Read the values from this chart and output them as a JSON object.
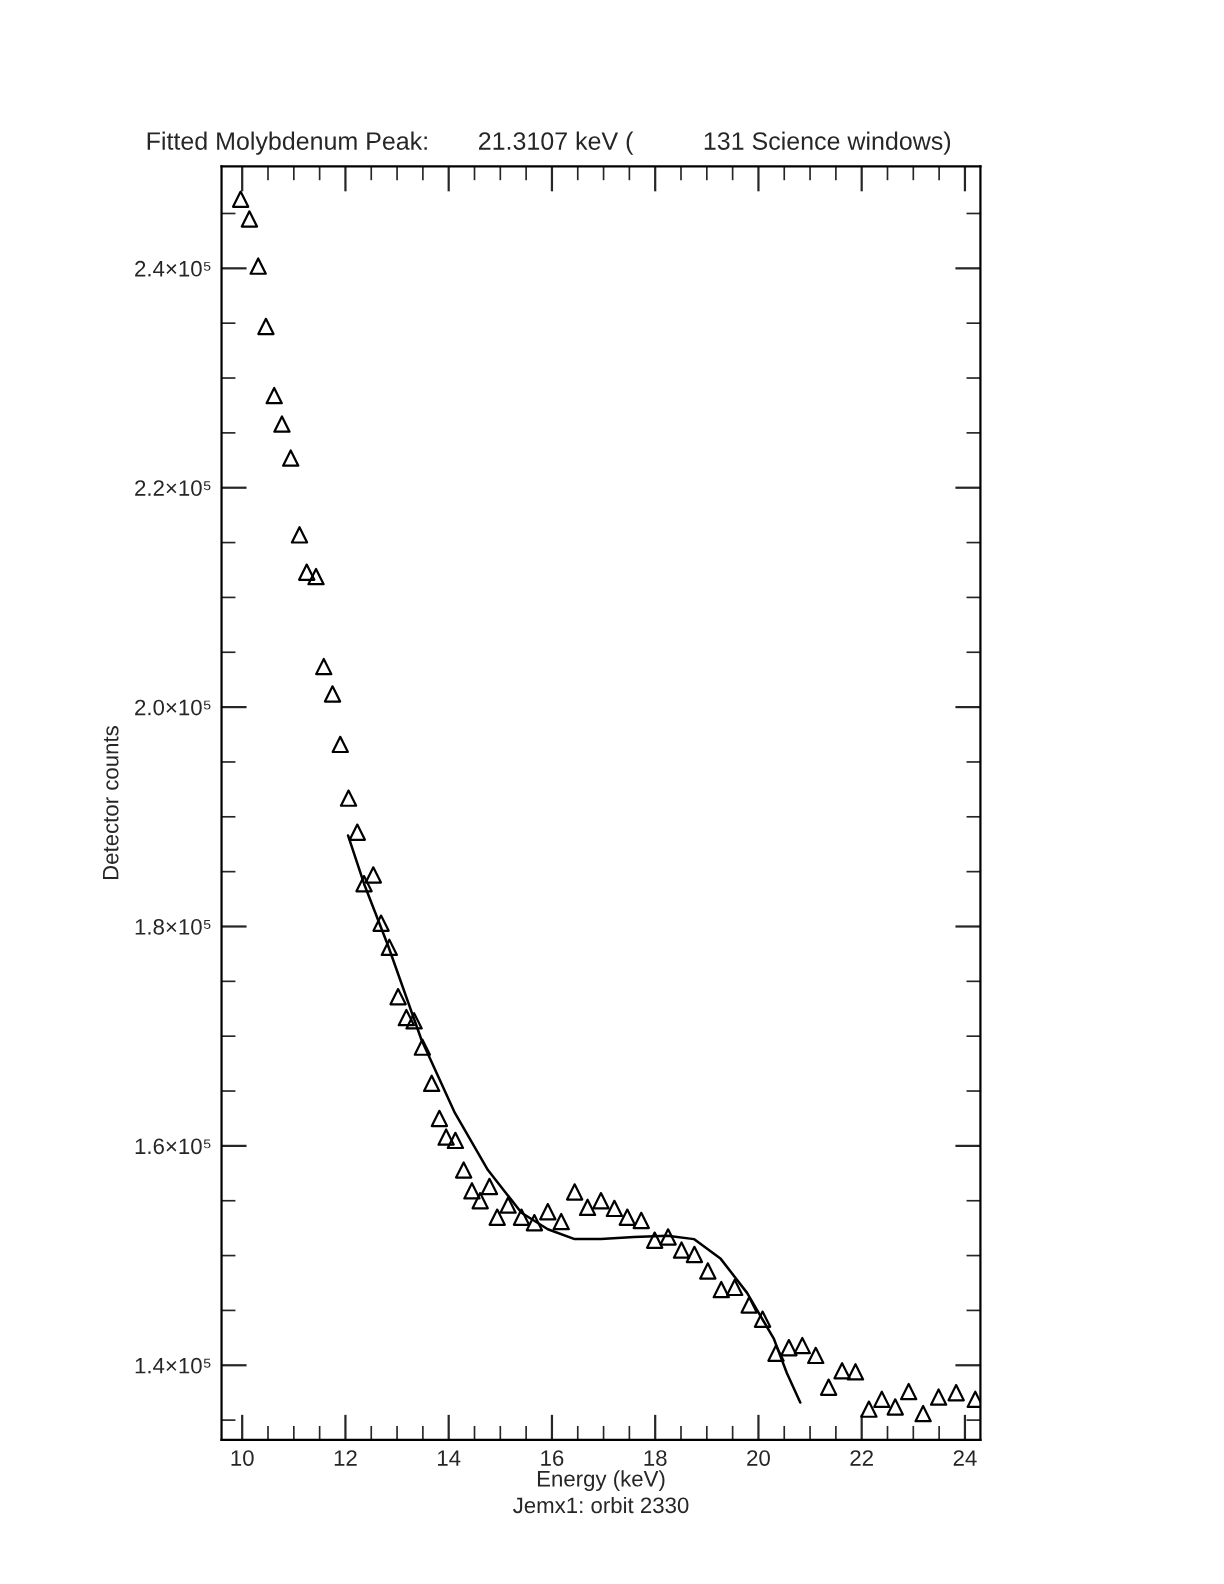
{
  "chart_data": {
    "type": "scatter",
    "title": "Fitted Molybdenum Peak:       21.3107 keV (          131 Science windows)",
    "xlabel": "Energy (keV)",
    "ylabel": "Detector counts",
    "annotations": [
      "Jemx1: orbit 2330"
    ],
    "xlim": [
      9.6,
      24.3
    ],
    "xticks": [
      10,
      12,
      14,
      16,
      18,
      20,
      22,
      24
    ],
    "ylim": [
      133200,
      249300
    ],
    "yticks": [
      {
        "value": 140000,
        "label": "1.4×10⁵"
      },
      {
        "value": 160000,
        "label": "1.6×10⁵"
      },
      {
        "value": 180000,
        "label": "1.8×10⁵"
      },
      {
        "value": 200000,
        "label": "2.0×10⁵"
      },
      {
        "value": 220000,
        "label": "2.2×10⁵"
      },
      {
        "value": 240000,
        "label": "2.4×10⁵"
      }
    ],
    "grid": false,
    "legend": false,
    "series": [
      {
        "marker": "triangle",
        "color": "#000000",
        "x": [
          9.97,
          10.14,
          10.31,
          10.46,
          10.62,
          10.77,
          10.94,
          11.11,
          11.25,
          11.43,
          11.58,
          11.75,
          11.9,
          12.06,
          12.23,
          12.36,
          12.54,
          12.69,
          12.85,
          13.02,
          13.18,
          13.33,
          13.49,
          13.67,
          13.82,
          13.95,
          14.13,
          14.29,
          14.45,
          14.61,
          14.79,
          14.94,
          15.15,
          15.41,
          15.66,
          15.92,
          16.18,
          16.44,
          16.69,
          16.95,
          17.21,
          17.46,
          17.73,
          17.99,
          18.25,
          18.51,
          18.76,
          19.02,
          19.28,
          19.54,
          19.82,
          20.08,
          20.34,
          20.59,
          20.85,
          21.11,
          21.36,
          21.62,
          21.88,
          22.14,
          22.39,
          22.65,
          22.91,
          23.19,
          23.49,
          23.83,
          24.2
        ],
        "values": [
          246300,
          244500,
          240200,
          234700,
          228400,
          225800,
          222700,
          215700,
          212300,
          211900,
          203700,
          201200,
          196600,
          191700,
          188600,
          183900,
          184700,
          180300,
          178100,
          173600,
          171700,
          171400,
          169000,
          165700,
          162500,
          160800,
          160500,
          157800,
          155900,
          155000,
          156300,
          153500,
          154600,
          153500,
          153000,
          154000,
          153100,
          155800,
          154400,
          155000,
          154300,
          153500,
          153200,
          151400,
          151700,
          150500,
          150100,
          148600,
          146900,
          147100,
          145500,
          144200,
          141100,
          141600,
          141800,
          140900,
          138000,
          139500,
          139400,
          136000,
          136900,
          136200,
          137600,
          135600,
          137100,
          137500,
          136900
        ]
      },
      {
        "type": "line",
        "marker": "none",
        "line_style": "solid",
        "color": "#000000",
        "x": [
          12.05,
          12.36,
          12.83,
          13.47,
          14.12,
          14.76,
          15.41,
          15.92,
          16.44,
          16.95,
          17.59,
          18.24,
          18.75,
          19.27,
          19.78,
          20.3,
          20.55,
          20.81
        ],
        "values": [
          188300,
          183900,
          178200,
          169700,
          163000,
          157800,
          153900,
          152400,
          151500,
          151500,
          151700,
          151800,
          151500,
          149700,
          146600,
          142400,
          139300,
          136600
        ]
      }
    ]
  }
}
